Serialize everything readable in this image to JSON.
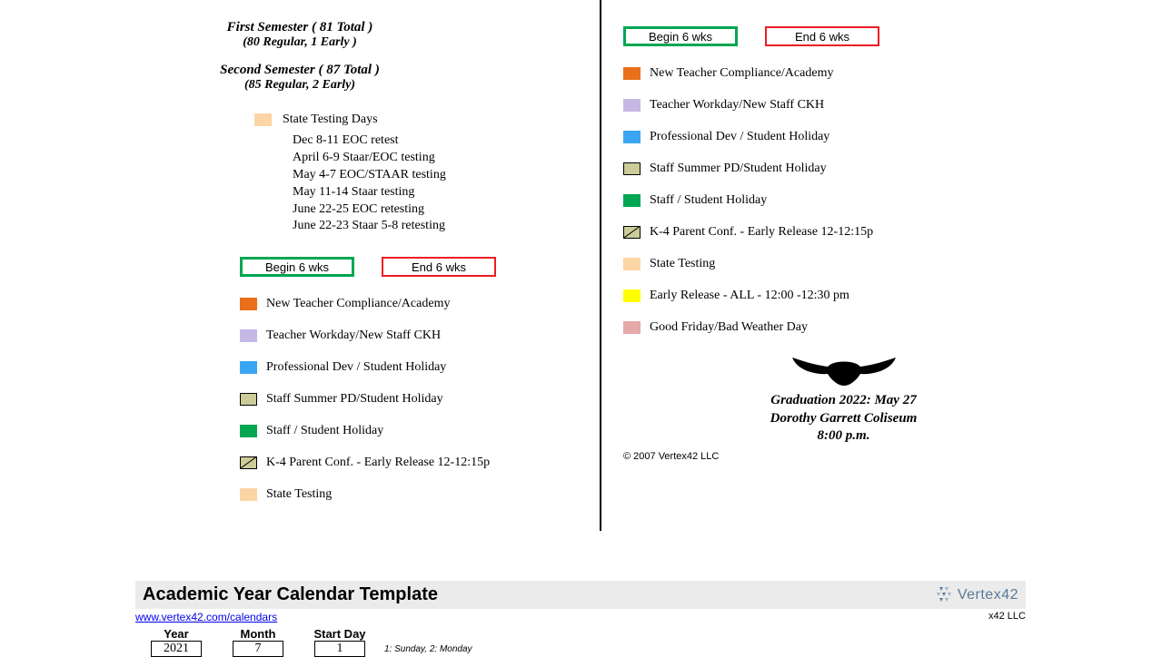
{
  "semesters": {
    "first_title": "First Semester ( 81 Total )",
    "first_sub": "(80 Regular, 1 Early )",
    "second_title": "Second Semester ( 87 Total )",
    "second_sub": "(85 Regular, 2 Early)"
  },
  "testing": {
    "header": "State Testing Days",
    "swatch_color": "#fcd5a5",
    "items": [
      "Dec 8-11  EOC retest",
      "April 6-9  Staar/EOC testing",
      "May 4-7  EOC/STAAR testing",
      "May 11-14  Staar testing",
      "June 22-25  EOC retesting",
      "June 22-23  Staar 5-8 retesting"
    ]
  },
  "begin_box": {
    "label": "Begin 6 wks",
    "border_color": "#00a651"
  },
  "end_box": {
    "label": "End 6 wks",
    "border_color": "#ed1c24"
  },
  "legend": [
    {
      "label": "New Teacher Compliance/Academy",
      "color": "#e8701a",
      "border": "#e8701a",
      "type": "solid"
    },
    {
      "label": "Teacher Workday/New Staff CKH",
      "color": "#c5b8e5",
      "border": "#c5b8e5",
      "type": "solid"
    },
    {
      "label": "Professional Dev / Student Holiday",
      "color": "#3aa6f2",
      "border": "#3aa6f2",
      "type": "solid"
    },
    {
      "label": "Staff Summer PD/Student Holiday",
      "color": "#cccc99",
      "border": "#000000",
      "type": "solid"
    },
    {
      "label": "Staff / Student Holiday",
      "color": "#00a651",
      "border": "#00a651",
      "type": "solid"
    },
    {
      "label": "K-4 Parent Conf. - Early Release 12-12:15p",
      "color": "#cccc99",
      "border": "#000000",
      "type": "diag"
    },
    {
      "label": "State Testing",
      "color": "#fcd5a5",
      "border": "#fcd5a5",
      "type": "solid"
    },
    {
      "label": "Early Release - ALL - 12:00 -12:30 pm",
      "color": "#ffff00",
      "border": "#ffff00",
      "type": "solid"
    },
    {
      "label": "Good Friday/Bad Weather Day",
      "color": "#e6a8a8",
      "border": "#e6a8a8",
      "type": "solid"
    }
  ],
  "graduation": {
    "line1": "Graduation 2022: May 27",
    "line2": "Dorothy Garrett Coliseum",
    "line3": "8:00 p.m."
  },
  "copyright": "© 2007 Vertex42 LLC",
  "footer": {
    "title": "Academic Year Calendar Template",
    "link": "www.vertex42.com/calendars",
    "llc": "x42 LLC",
    "logo_text": "Vertex42",
    "headers": {
      "year": "Year",
      "month": "Month",
      "start_day": "Start Day"
    },
    "values": {
      "year": "2021",
      "month": "7",
      "start_day": "1"
    },
    "note": "1: Sunday, 2: Monday"
  }
}
